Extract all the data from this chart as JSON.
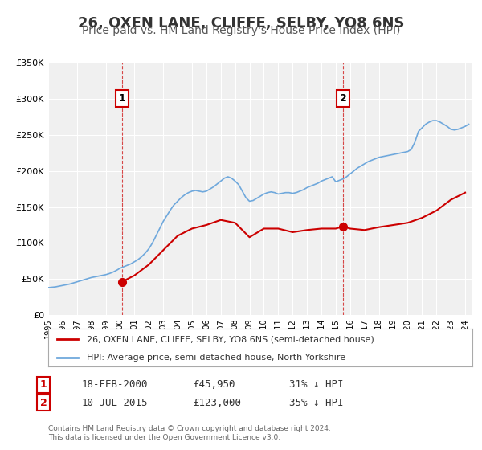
{
  "title": "26, OXEN LANE, CLIFFE, SELBY, YO8 6NS",
  "subtitle": "Price paid vs. HM Land Registry's House Price Index (HPI)",
  "title_fontsize": 13,
  "subtitle_fontsize": 10,
  "background_color": "#ffffff",
  "plot_bg_color": "#f0f0f0",
  "grid_color": "#ffffff",
  "hpi_color": "#6fa8dc",
  "price_color": "#cc0000",
  "ylim": [
    0,
    350000
  ],
  "yticks": [
    0,
    50000,
    100000,
    150000,
    200000,
    250000,
    300000,
    350000
  ],
  "ytick_labels": [
    "£0",
    "£50K",
    "£100K",
    "£150K",
    "£200K",
    "£250K",
    "£300K",
    "£350K"
  ],
  "xmin": 1995.0,
  "xmax": 2024.5,
  "sale1_x": 2000.12,
  "sale1_y": 45950,
  "sale1_label": "1",
  "sale2_x": 2015.52,
  "sale2_y": 123000,
  "sale2_label": "2",
  "vline1_x": 2000.12,
  "vline2_x": 2015.52,
  "legend_label_red": "26, OXEN LANE, CLIFFE, SELBY, YO8 6NS (semi-detached house)",
  "legend_label_blue": "HPI: Average price, semi-detached house, North Yorkshire",
  "table_row1": [
    "1",
    "18-FEB-2000",
    "£45,950",
    "31% ↓ HPI"
  ],
  "table_row2": [
    "2",
    "10-JUL-2015",
    "£123,000",
    "35% ↓ HPI"
  ],
  "footer": "Contains HM Land Registry data © Crown copyright and database right 2024.\nThis data is licensed under the Open Government Licence v3.0.",
  "hpi_data_x": [
    1995.0,
    1995.25,
    1995.5,
    1995.75,
    1996.0,
    1996.25,
    1996.5,
    1996.75,
    1997.0,
    1997.25,
    1997.5,
    1997.75,
    1998.0,
    1998.25,
    1998.5,
    1998.75,
    1999.0,
    1999.25,
    1999.5,
    1999.75,
    2000.0,
    2000.25,
    2000.5,
    2000.75,
    2001.0,
    2001.25,
    2001.5,
    2001.75,
    2002.0,
    2002.25,
    2002.5,
    2002.75,
    2003.0,
    2003.25,
    2003.5,
    2003.75,
    2004.0,
    2004.25,
    2004.5,
    2004.75,
    2005.0,
    2005.25,
    2005.5,
    2005.75,
    2006.0,
    2006.25,
    2006.5,
    2006.75,
    2007.0,
    2007.25,
    2007.5,
    2007.75,
    2008.0,
    2008.25,
    2008.5,
    2008.75,
    2009.0,
    2009.25,
    2009.5,
    2009.75,
    2010.0,
    2010.25,
    2010.5,
    2010.75,
    2011.0,
    2011.25,
    2011.5,
    2011.75,
    2012.0,
    2012.25,
    2012.5,
    2012.75,
    2013.0,
    2013.25,
    2013.5,
    2013.75,
    2014.0,
    2014.25,
    2014.5,
    2014.75,
    2015.0,
    2015.25,
    2015.5,
    2015.75,
    2016.0,
    2016.25,
    2016.5,
    2016.75,
    2017.0,
    2017.25,
    2017.5,
    2017.75,
    2018.0,
    2018.25,
    2018.5,
    2018.75,
    2019.0,
    2019.25,
    2019.5,
    2019.75,
    2020.0,
    2020.25,
    2020.5,
    2020.75,
    2021.0,
    2021.25,
    2021.5,
    2021.75,
    2022.0,
    2022.25,
    2022.5,
    2022.75,
    2023.0,
    2023.25,
    2023.5,
    2023.75,
    2024.0,
    2024.25
  ],
  "hpi_data_y": [
    38000,
    38500,
    39000,
    40000,
    41000,
    42000,
    43000,
    44500,
    46000,
    47500,
    49000,
    50500,
    52000,
    53000,
    54000,
    55000,
    56000,
    57500,
    59500,
    62000,
    65000,
    67000,
    69000,
    71000,
    74000,
    77000,
    81000,
    86000,
    92000,
    100000,
    110000,
    120000,
    130000,
    138000,
    146000,
    153000,
    158000,
    163000,
    167000,
    170000,
    172000,
    173000,
    172000,
    171000,
    172000,
    175000,
    178000,
    182000,
    186000,
    190000,
    192000,
    190000,
    186000,
    181000,
    172000,
    163000,
    158000,
    159000,
    162000,
    165000,
    168000,
    170000,
    171000,
    170000,
    168000,
    169000,
    170000,
    170000,
    169000,
    170000,
    172000,
    174000,
    177000,
    179000,
    181000,
    183000,
    186000,
    188000,
    190000,
    192000,
    185000,
    187000,
    189000,
    192000,
    196000,
    200000,
    204000,
    207000,
    210000,
    213000,
    215000,
    217000,
    219000,
    220000,
    221000,
    222000,
    223000,
    224000,
    225000,
    226000,
    227000,
    230000,
    240000,
    255000,
    260000,
    265000,
    268000,
    270000,
    270000,
    268000,
    265000,
    262000,
    258000,
    257000,
    258000,
    260000,
    262000,
    265000
  ],
  "price_data_x": [
    1995.0,
    1995.5,
    1996.0,
    1997.0,
    1998.0,
    1999.0,
    2000.12,
    2001.0,
    2002.0,
    2003.0,
    2004.0,
    2005.0,
    2006.0,
    2007.0,
    2008.0,
    2009.0,
    2010.0,
    2011.0,
    2012.0,
    2013.0,
    2014.0,
    2015.0,
    2015.52,
    2016.0,
    2017.0,
    2018.0,
    2019.0,
    2020.0,
    2021.0,
    2022.0,
    2023.0,
    2024.0
  ],
  "price_data_y": [
    null,
    null,
    null,
    null,
    null,
    null,
    45950,
    55000,
    70000,
    90000,
    110000,
    120000,
    125000,
    132000,
    128000,
    108000,
    120000,
    120000,
    115000,
    118000,
    120000,
    120000,
    123000,
    120000,
    118000,
    122000,
    125000,
    128000,
    135000,
    145000,
    160000,
    170000
  ]
}
